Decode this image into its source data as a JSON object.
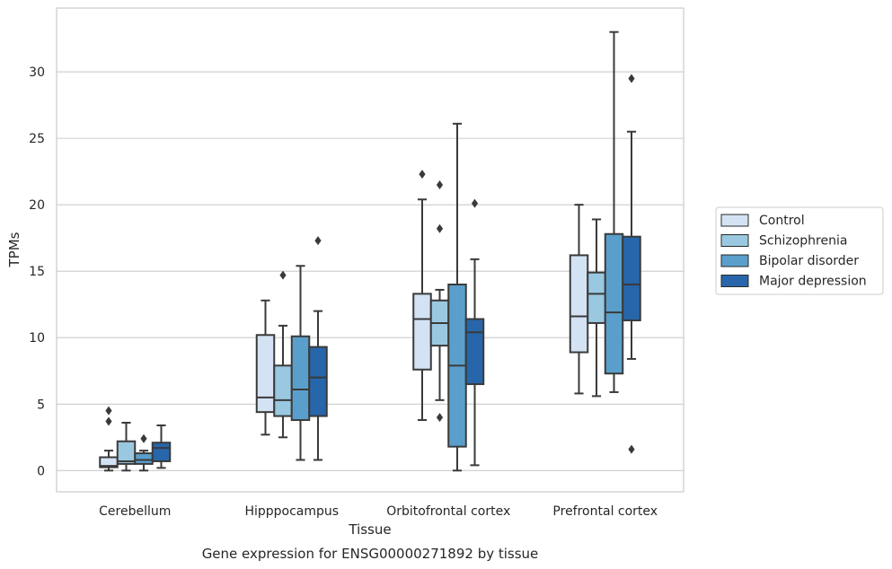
{
  "chart_data": {
    "type": "box",
    "xlabel": "Tissue",
    "ylabel": "TPMs",
    "caption": "Gene expression for ENSG00000271892 by tissue",
    "ylim": [
      -1.6,
      34.8
    ],
    "yticks": [
      0,
      5,
      10,
      15,
      20,
      25,
      30
    ],
    "grid": "horizontal",
    "legend_position": "right",
    "categories": [
      "Cerebellum",
      "Hipppocampus",
      "Orbitofrontal cortex",
      "Prefrontal cortex"
    ],
    "series": [
      {
        "name": "Control",
        "color": "#d3e3f3",
        "boxes": [
          {
            "whislo": 0.0,
            "q1": 0.25,
            "med": 0.35,
            "q3": 1.0,
            "whishi": 1.5,
            "fliers": [
              3.7,
              4.5
            ]
          },
          {
            "whislo": 2.7,
            "q1": 4.4,
            "med": 5.5,
            "q3": 10.2,
            "whishi": 12.8,
            "fliers": []
          },
          {
            "whislo": 3.8,
            "q1": 7.6,
            "med": 11.4,
            "q3": 13.3,
            "whishi": 20.4,
            "fliers": [
              22.3
            ]
          },
          {
            "whislo": 5.8,
            "q1": 8.9,
            "med": 11.6,
            "q3": 16.2,
            "whishi": 20.0,
            "fliers": []
          }
        ]
      },
      {
        "name": "Schizophrenia",
        "color": "#9ac8e0",
        "boxes": [
          {
            "whislo": 0.0,
            "q1": 0.5,
            "med": 0.7,
            "q3": 2.2,
            "whishi": 3.6,
            "fliers": []
          },
          {
            "whislo": 2.5,
            "q1": 4.1,
            "med": 5.3,
            "q3": 7.9,
            "whishi": 10.9,
            "fliers": [
              14.7
            ]
          },
          {
            "whislo": 5.3,
            "q1": 9.4,
            "med": 11.1,
            "q3": 12.8,
            "whishi": 13.6,
            "fliers": [
              4.0,
              18.2,
              21.5
            ]
          },
          {
            "whislo": 5.6,
            "q1": 11.1,
            "med": 13.3,
            "q3": 14.9,
            "whishi": 18.9,
            "fliers": []
          }
        ]
      },
      {
        "name": "Bipolar disorder",
        "color": "#5a9fcb",
        "boxes": [
          {
            "whislo": 0.0,
            "q1": 0.5,
            "med": 0.8,
            "q3": 1.3,
            "whishi": 1.5,
            "fliers": [
              2.4
            ]
          },
          {
            "whislo": 0.8,
            "q1": 3.8,
            "med": 6.1,
            "q3": 10.1,
            "whishi": 15.4,
            "fliers": []
          },
          {
            "whislo": 0.0,
            "q1": 1.8,
            "med": 7.9,
            "q3": 14.0,
            "whishi": 26.1,
            "fliers": []
          },
          {
            "whislo": 5.9,
            "q1": 7.3,
            "med": 11.9,
            "q3": 17.8,
            "whishi": 33.0,
            "fliers": []
          }
        ]
      },
      {
        "name": "Major depression",
        "color": "#2766aa",
        "boxes": [
          {
            "whislo": 0.2,
            "q1": 0.7,
            "med": 1.7,
            "q3": 2.1,
            "whishi": 3.4,
            "fliers": []
          },
          {
            "whislo": 0.8,
            "q1": 4.1,
            "med": 7.0,
            "q3": 9.3,
            "whishi": 12.0,
            "fliers": [
              17.3
            ]
          },
          {
            "whislo": 0.4,
            "q1": 6.5,
            "med": 10.4,
            "q3": 11.4,
            "whishi": 15.9,
            "fliers": [
              20.1
            ]
          },
          {
            "whislo": 8.4,
            "q1": 11.3,
            "med": 14.0,
            "q3": 17.6,
            "whishi": 25.5,
            "fliers": [
              1.6,
              29.5
            ]
          }
        ]
      }
    ]
  }
}
